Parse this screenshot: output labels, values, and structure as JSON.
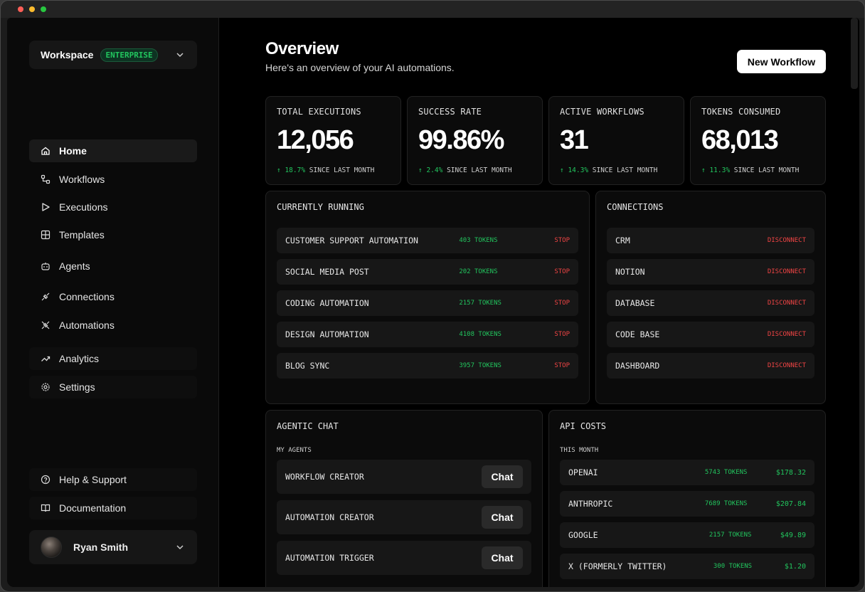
{
  "workspace": {
    "name": "Workspace",
    "plan": "ENTERPRISE"
  },
  "nav": {
    "home": "Home",
    "workflows": "Workflows",
    "executions": "Executions",
    "templates": "Templates",
    "agents": "Agents",
    "connections": "Connections",
    "automations": "Automations",
    "analytics": "Analytics",
    "settings": "Settings",
    "help": "Help & Support",
    "docs": "Documentation"
  },
  "user": {
    "name": "Ryan Smith"
  },
  "header": {
    "title": "Overview",
    "subtitle": "Here's an overview of your AI automations.",
    "new_workflow": "New Workflow"
  },
  "stats": [
    {
      "label": "TOTAL EXECUTIONS",
      "value": "12,056",
      "delta": "↑ 18.7%",
      "since": "SINCE LAST MONTH"
    },
    {
      "label": "SUCCESS RATE",
      "value": "99.86%",
      "delta": "↑ 2.4%",
      "since": "SINCE LAST MONTH"
    },
    {
      "label": "ACTIVE WORKFLOWS",
      "value": "31",
      "delta": "↑ 14.3%",
      "since": "SINCE LAST MONTH"
    },
    {
      "label": "TOKENS CONSUMED",
      "value": "68,013",
      "delta": "↑ 11.3%",
      "since": "SINCE LAST MONTH"
    }
  ],
  "running": {
    "title": "CURRENTLY RUNNING",
    "stop_label": "STOP",
    "items": [
      {
        "name": "CUSTOMER SUPPORT AUTOMATION",
        "tokens": "403 TOKENS"
      },
      {
        "name": "SOCIAL MEDIA POST",
        "tokens": "202 TOKENS"
      },
      {
        "name": "CODING AUTOMATION",
        "tokens": "2157 TOKENS"
      },
      {
        "name": "DESIGN AUTOMATION",
        "tokens": "4108 TOKENS"
      },
      {
        "name": "BLOG SYNC",
        "tokens": "3957 TOKENS"
      }
    ]
  },
  "connections": {
    "title": "CONNECTIONS",
    "disconnect_label": "DISCONNECT",
    "items": [
      "CRM",
      "NOTION",
      "DATABASE",
      "CODE BASE",
      "DASHBOARD"
    ]
  },
  "chat": {
    "title": "AGENTIC CHAT",
    "subtitle": "MY AGENTS",
    "button": "Chat",
    "agents": [
      "WORKFLOW CREATOR",
      "AUTOMATION CREATOR",
      "AUTOMATION TRIGGER"
    ]
  },
  "costs": {
    "title": "API COSTS",
    "subtitle": "THIS MONTH",
    "items": [
      {
        "provider": "OPENAI",
        "tokens": "5743 TOKENS",
        "cost": "$178.32"
      },
      {
        "provider": "ANTHROPIC",
        "tokens": "7689 TOKENS",
        "cost": "$207.84"
      },
      {
        "provider": "GOOGLE",
        "tokens": "2157 TOKENS",
        "cost": "$49.89"
      },
      {
        "provider": "X (FORMERLY TWITTER)",
        "tokens": "300 TOKENS",
        "cost": "$1.20"
      }
    ]
  },
  "colors": {
    "accent_green": "#22c55e",
    "danger_red": "#ef4444",
    "background": "#000000"
  }
}
